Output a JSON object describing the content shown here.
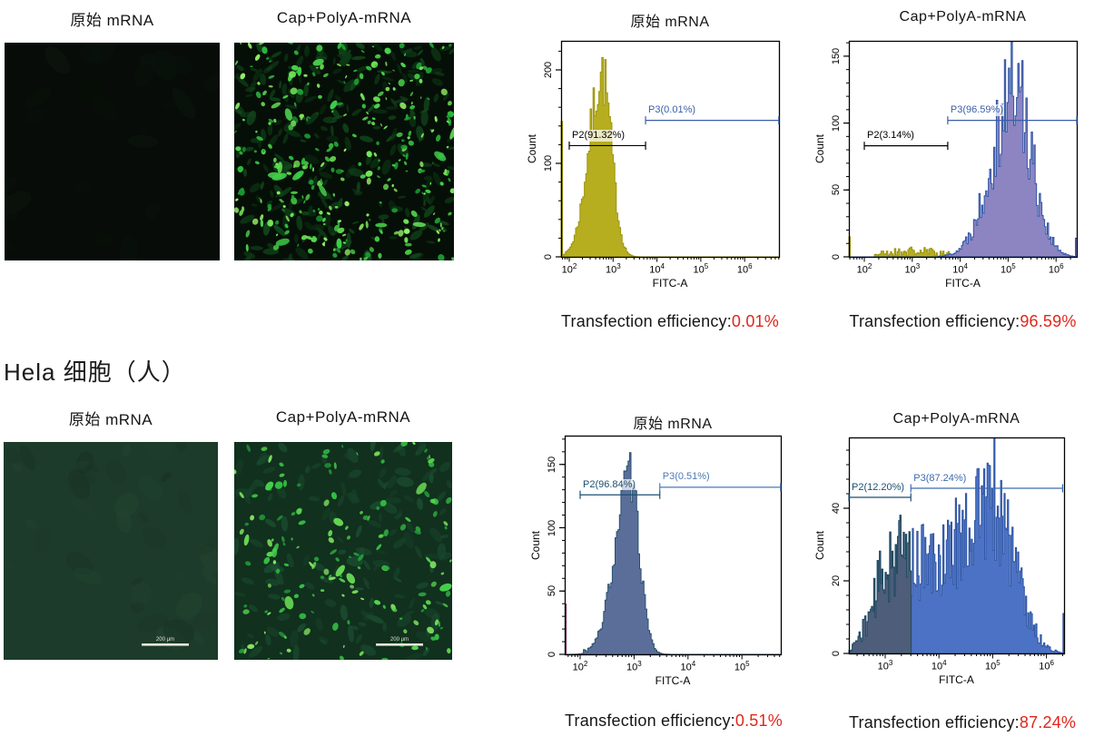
{
  "figure": {
    "section_label": "Hela 细胞（人）",
    "rows": [
      {
        "microscopy": [
          {
            "title": "原始 mRNA",
            "description": "dark field, almost no green fluorescence",
            "scale_bar": ""
          },
          {
            "title": "Cap+PolyA-mRNA",
            "description": "dense bright green fluorescent cells",
            "scale_bar": ""
          }
        ],
        "efficiency": [
          {
            "label": "Transfection efficiency:",
            "value": "0.01%"
          },
          {
            "label": "Transfection efficiency:",
            "value": "96.59%"
          }
        ]
      },
      {
        "microscopy": [
          {
            "title": "原始 mRNA",
            "description": "dim dark-green field, no transfected cells",
            "scale_bar": "200 μm"
          },
          {
            "title": "Cap+PolyA-mRNA",
            "description": "scattered bright green fluorescent cells",
            "scale_bar": "200 μm"
          }
        ],
        "efficiency": [
          {
            "label": "Transfection efficiency:",
            "value": "0.51%"
          },
          {
            "label": "Transfection efficiency:",
            "value": "87.24%"
          }
        ]
      }
    ]
  },
  "colors": {
    "efficiency_value": "#e1251b",
    "hist1_fill": "#b6ae1f",
    "hist2_fill": "#8d84c2",
    "hist2_stroke": "#2f55a4",
    "hist3_fill": "#5b6e99",
    "hist4_left_fill": "#4e5d79",
    "hist4_fill": "#4b72c4",
    "gate_blue": "#3a5fa8"
  },
  "chart_data": [
    {
      "type": "area",
      "panel": "row1-left-flow",
      "title": "原始 mRNA",
      "xlabel": "FITC-A",
      "ylabel": "Count",
      "x_scale": "log",
      "xlim": [
        65,
        6000000
      ],
      "x_ticks": [
        "10^2",
        "10^3",
        "10^4",
        "10^5",
        "10^6"
      ],
      "ylim": [
        0,
        231
      ],
      "y_ticks": [
        "0",
        "100",
        "200"
      ],
      "grid": false,
      "series": [
        {
          "name": "unmodified mRNA cells",
          "color": "#b6ae1f",
          "peak_x": 560,
          "peak_count": 195,
          "range_x": [
            100,
            3500
          ],
          "edge_spike_count": 145
        }
      ],
      "gates": [
        {
          "label": "P2(91.32%)",
          "percent": 91.32,
          "from_x": 100,
          "to_x": 5500,
          "at_count": 119,
          "color": "#000000"
        },
        {
          "label": "P3(0.01%)",
          "percent": 0.01,
          "from_x": 5500,
          "to_x": 6000000,
          "at_count": 146,
          "color": "#3a5fa8"
        }
      ]
    },
    {
      "type": "area",
      "panel": "row1-right-flow",
      "title": "Cap+PolyA-mRNA",
      "xlabel": "FITC-A",
      "ylabel": "Count",
      "x_scale": "log",
      "xlim": [
        48,
        2700000
      ],
      "x_ticks": [
        "10^2",
        "10^3",
        "10^4",
        "10^5",
        "10^6"
      ],
      "ylim": [
        0,
        161
      ],
      "y_ticks": [
        "0",
        "50",
        "100",
        "150"
      ],
      "grid": false,
      "series": [
        {
          "name": "transfected cells",
          "color": "#8d84c2",
          "peak_x": 150000,
          "peak_count": 135,
          "range_x": [
            4000,
            2700000
          ],
          "edge_spike_count": 14
        },
        {
          "name": "debris noise",
          "color": "#b6ae1f",
          "peak_count": 7,
          "range_x": [
            160,
            12000
          ],
          "edge_spike_count": 15
        }
      ],
      "gates": [
        {
          "label": "P2(3.14%)",
          "percent": 3.14,
          "from_x": 100,
          "to_x": 5500,
          "at_count": 83,
          "color": "#000000"
        },
        {
          "label": "P3(96.59%)",
          "percent": 96.59,
          "from_x": 5500,
          "to_x": 2700000,
          "at_count": 102,
          "color": "#3a5fa8"
        }
      ]
    },
    {
      "type": "area",
      "panel": "row2-left-flow",
      "title": "原始 mRNA",
      "xlabel": "FITC-A",
      "ylabel": "Count",
      "x_scale": "log",
      "xlim": [
        52,
        520000
      ],
      "x_ticks": [
        "10^2",
        "10^3",
        "10^4",
        "10^5"
      ],
      "ylim": [
        0,
        173
      ],
      "y_ticks": [
        "0",
        "50",
        "100",
        "150"
      ],
      "grid": false,
      "series": [
        {
          "name": "unmodified mRNA cells",
          "color": "#5b6e99",
          "peak_x": 850,
          "peak_count": 140,
          "range_x": [
            150,
            4500
          ],
          "edge_spike_count": 40
        }
      ],
      "gates": [
        {
          "label": "P2(96.84%)",
          "percent": 96.84,
          "from_x": 100,
          "to_x": 3000,
          "at_count": 126,
          "color": "#1b4f72"
        },
        {
          "label": "P3(0.51%)",
          "percent": 0.51,
          "from_x": 3000,
          "to_x": 520000,
          "at_count": 132,
          "color": "#4a7ab5"
        }
      ]
    },
    {
      "type": "area",
      "panel": "row2-right-flow",
      "title": "Cap+PolyA-mRNA",
      "xlabel": "FITC-A",
      "ylabel": "Count",
      "x_scale": "log",
      "xlim": [
        210,
        2100000
      ],
      "x_ticks": [
        "10^3",
        "10^4",
        "10^5",
        "10^6"
      ],
      "ylim": [
        0,
        59
      ],
      "y_ticks": [
        "0",
        "20",
        "40"
      ],
      "grid": false,
      "series": [
        {
          "name": "transfected cells (broad)",
          "color": "#4b72c4",
          "peak_x": 120000,
          "peak_count": 49,
          "range_x": [
            300,
            2000000
          ],
          "edge_spike_count": 11
        },
        {
          "name": "P2 shaded region",
          "color": "#4e5d79",
          "range_x": [
            300,
            3000
          ]
        }
      ],
      "gates": [
        {
          "label": "P2(12.20%)",
          "percent": 12.2,
          "from_x": 210,
          "to_x": 3000,
          "at_count": 43,
          "color": "#1b4f72"
        },
        {
          "label": "P3(87.24%)",
          "percent": 87.24,
          "from_x": 3000,
          "to_x": 2000000,
          "at_count": 45.5,
          "color": "#3a6ab0"
        }
      ]
    }
  ]
}
